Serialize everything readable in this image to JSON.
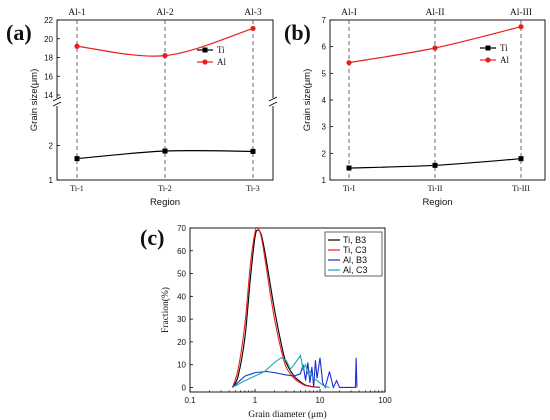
{
  "chart_data": [
    {
      "panel": "(a)",
      "type": "line",
      "categories_bottom": [
        "Ti-1",
        "Ti-2",
        "Ti-3"
      ],
      "categories_top": [
        "Al-1",
        "Al-2",
        "Al-3"
      ],
      "xlabel": "Region",
      "ylabel": "Grain size(μm)",
      "y_axis_break": true,
      "lower_segment": {
        "ylim": [
          1,
          3
        ],
        "ticks": [
          "1",
          "2"
        ]
      },
      "upper_segment": {
        "ylim": [
          14,
          22
        ],
        "ticks": [
          "14",
          "16",
          "18",
          "20",
          "22"
        ]
      },
      "legend_position": "top-right",
      "series": [
        {
          "name": "Ti",
          "color": "#000000",
          "marker": "square",
          "values": [
            1.62,
            1.84,
            1.83
          ],
          "errors": [
            0.08,
            0.07,
            0.07
          ]
        },
        {
          "name": "Al",
          "color": "#e8201c",
          "marker": "circle",
          "values": [
            19.2,
            18.2,
            21.1
          ],
          "errors": [
            0.2,
            0.15,
            0.15
          ]
        }
      ]
    },
    {
      "panel": "(b)",
      "type": "line",
      "categories_bottom": [
        "Ti-I",
        "Ti-II",
        "Ti-III"
      ],
      "categories_top": [
        "Al-I",
        "Al-II",
        "Al-III"
      ],
      "xlabel": "Region",
      "ylabel": "Grain size(μm)",
      "ylim": [
        1,
        7
      ],
      "ticks": [
        "1",
        "2",
        "3",
        "4",
        "5",
        "6",
        "7"
      ],
      "legend_position": "top-right",
      "series": [
        {
          "name": "Ti",
          "color": "#000000",
          "marker": "square",
          "values": [
            1.45,
            1.55,
            1.8
          ]
        },
        {
          "name": "Al",
          "color": "#e8201c",
          "marker": "circle",
          "values": [
            5.4,
            5.95,
            6.75
          ]
        }
      ]
    },
    {
      "panel": "(c)",
      "type": "line",
      "xlabel": "Grain diameter (μm)",
      "ylabel": "Fraction(%)",
      "xscale": "log",
      "xlim": [
        0.1,
        100
      ],
      "xticks": [
        "0.1",
        "1",
        "10",
        "100"
      ],
      "ylim": [
        -2,
        70
      ],
      "yticks": [
        "0",
        "10",
        "20",
        "30",
        "40",
        "50",
        "60",
        "70"
      ],
      "legend_position": "top-right",
      "series": [
        {
          "name": "Ti, B3",
          "color": "#000000",
          "x": [
            0.45,
            0.55,
            0.7,
            0.85,
            1.0,
            1.1,
            1.25,
            1.45,
            1.7,
            2.0,
            2.5,
            3.0,
            4.0,
            5.0,
            6.0,
            8.0,
            10.0
          ],
          "y": [
            0,
            5,
            22,
            48,
            66,
            69,
            67,
            58,
            46,
            34,
            20,
            11,
            5,
            2.5,
            1,
            0.3,
            0
          ]
        },
        {
          "name": "Ti, C3",
          "color": "#e8201c",
          "x": [
            0.45,
            0.55,
            0.7,
            0.85,
            1.0,
            1.1,
            1.25,
            1.45,
            1.7,
            2.0,
            2.5,
            3.0,
            4.0,
            5.0,
            6.0,
            8.0,
            10.0
          ],
          "y": [
            0,
            8,
            28,
            54,
            68,
            70,
            66,
            55,
            42,
            30,
            17,
            9,
            4,
            2,
            0.8,
            0.2,
            0
          ]
        },
        {
          "name": "Al, B3",
          "color": "#1f2fd0",
          "x": [
            0.45,
            0.7,
            1.0,
            1.5,
            2.0,
            3.0,
            4.0,
            5.0,
            5.5,
            6.0,
            6.5,
            7.0,
            7.5,
            8.0,
            8.5,
            9.0,
            10.0,
            11.0,
            12.0,
            14.0,
            16.0,
            18.0,
            20.0,
            25.0,
            30.0,
            35.0,
            36.0,
            37.0
          ],
          "y": [
            0,
            5,
            6.5,
            7,
            6.5,
            5.5,
            5,
            6,
            10,
            3,
            11,
            2,
            9,
            0,
            12,
            4,
            13,
            2,
            0,
            7,
            0,
            3,
            0,
            0,
            0,
            0,
            13,
            0
          ]
        },
        {
          "name": "Al, C3",
          "color": "#14a8b0",
          "x": [
            0.45,
            0.7,
            1.0,
            1.4,
            2.0,
            2.5,
            3.0,
            3.5,
            4.0,
            5.0,
            5.5,
            6.0,
            6.5,
            7.0,
            8.0,
            9.0,
            10.0,
            11.0,
            12.0,
            14.0
          ],
          "y": [
            0,
            3,
            5,
            7,
            11,
            13,
            12,
            8,
            10,
            14,
            8,
            10,
            6,
            7,
            4,
            3,
            2,
            1,
            0.5,
            0
          ]
        }
      ]
    }
  ]
}
